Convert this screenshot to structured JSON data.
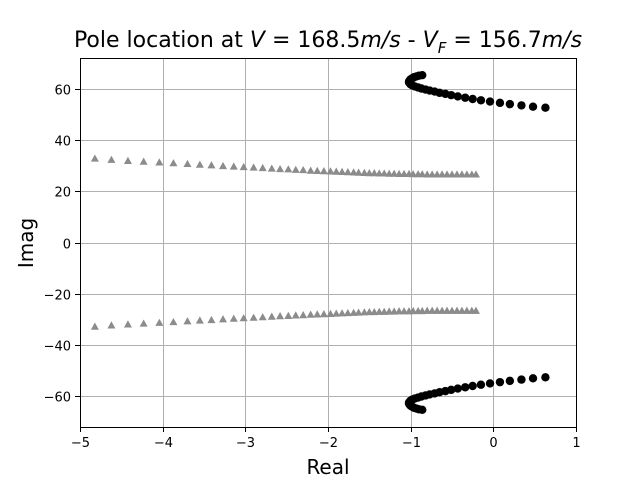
{
  "chart_data": {
    "type": "scatter",
    "title": "Pole location at V = 168.5m/s - V_F = 156.7m/s",
    "title_parts": {
      "prefix": "Pole location at ",
      "v_sym": "V",
      "eq1": " = 168.5",
      "unit1": "m/s",
      "dash": " - ",
      "vf_sym": "V",
      "vf_sub": "F",
      "eq2": " = 156.7",
      "unit2": "m/s"
    },
    "xlabel": "Real",
    "ylabel": "Imag",
    "xlim": [
      -5,
      1
    ],
    "ylim": [
      -72,
      72
    ],
    "x_ticks": [
      -5,
      -4,
      -3,
      -2,
      -1,
      0,
      1
    ],
    "y_ticks": [
      -60,
      -40,
      -20,
      0,
      20,
      40,
      60
    ],
    "x_tick_labels": [
      "−5",
      "−4",
      "−3",
      "−2",
      "−1",
      "0",
      "1"
    ],
    "y_tick_labels": [
      "−60",
      "−40",
      "−20",
      "0",
      "20",
      "40",
      "60"
    ],
    "grid": true,
    "colors": {
      "triangles": "#8c8c8c",
      "circles": "#000000",
      "grid": "#b0b0b0"
    },
    "series": [
      {
        "marker": "triangle",
        "color": "#8c8c8c",
        "points": [
          [
            -4.82,
            32.8
          ],
          [
            -4.62,
            32.3
          ],
          [
            -4.42,
            31.9
          ],
          [
            -4.23,
            31.6
          ],
          [
            -4.04,
            31.3
          ],
          [
            -3.87,
            31.0
          ],
          [
            -3.7,
            30.7
          ],
          [
            -3.55,
            30.4
          ],
          [
            -3.41,
            30.2
          ],
          [
            -3.27,
            29.9
          ],
          [
            -3.14,
            29.7
          ],
          [
            -3.02,
            29.5
          ],
          [
            -2.9,
            29.3
          ],
          [
            -2.79,
            29.1
          ],
          [
            -2.68,
            28.9
          ],
          [
            -2.58,
            28.7
          ],
          [
            -2.48,
            28.6
          ],
          [
            -2.39,
            28.4
          ],
          [
            -2.3,
            28.3
          ],
          [
            -2.21,
            28.1
          ],
          [
            -2.13,
            28.0
          ],
          [
            -2.05,
            27.9
          ],
          [
            -1.97,
            27.8
          ],
          [
            -1.9,
            27.7
          ],
          [
            -1.83,
            27.6
          ],
          [
            -1.76,
            27.5
          ],
          [
            -1.69,
            27.4
          ],
          [
            -1.63,
            27.3
          ],
          [
            -1.56,
            27.2
          ],
          [
            -1.5,
            27.1
          ],
          [
            -1.44,
            27.1
          ],
          [
            -1.38,
            27.0
          ],
          [
            -1.32,
            27.0
          ],
          [
            -1.26,
            26.9
          ],
          [
            -1.2,
            26.9
          ],
          [
            -1.14,
            26.8
          ],
          [
            -1.08,
            26.8
          ],
          [
            -1.02,
            26.8
          ],
          [
            -0.97,
            26.7
          ],
          [
            -0.91,
            26.7
          ],
          [
            -0.86,
            26.7
          ],
          [
            -0.8,
            26.6
          ],
          [
            -0.74,
            26.6
          ],
          [
            -0.68,
            26.6
          ],
          [
            -0.62,
            26.6
          ],
          [
            -0.56,
            26.6
          ],
          [
            -0.5,
            26.6
          ],
          [
            -0.44,
            26.6
          ],
          [
            -0.38,
            26.6
          ],
          [
            -0.32,
            26.6
          ],
          [
            -0.26,
            26.6
          ],
          [
            -0.21,
            26.6
          ],
          [
            -4.82,
            -32.8
          ],
          [
            -4.62,
            -32.3
          ],
          [
            -4.42,
            -31.9
          ],
          [
            -4.23,
            -31.6
          ],
          [
            -4.04,
            -31.3
          ],
          [
            -3.87,
            -31.0
          ],
          [
            -3.7,
            -30.7
          ],
          [
            -3.55,
            -30.4
          ],
          [
            -3.41,
            -30.2
          ],
          [
            -3.27,
            -29.9
          ],
          [
            -3.14,
            -29.7
          ],
          [
            -3.02,
            -29.5
          ],
          [
            -2.9,
            -29.3
          ],
          [
            -2.79,
            -29.1
          ],
          [
            -2.68,
            -28.9
          ],
          [
            -2.58,
            -28.7
          ],
          [
            -2.48,
            -28.6
          ],
          [
            -2.39,
            -28.4
          ],
          [
            -2.3,
            -28.3
          ],
          [
            -2.21,
            -28.1
          ],
          [
            -2.13,
            -28.0
          ],
          [
            -2.05,
            -27.9
          ],
          [
            -1.97,
            -27.8
          ],
          [
            -1.9,
            -27.7
          ],
          [
            -1.83,
            -27.6
          ],
          [
            -1.76,
            -27.5
          ],
          [
            -1.69,
            -27.4
          ],
          [
            -1.63,
            -27.3
          ],
          [
            -1.56,
            -27.2
          ],
          [
            -1.5,
            -27.1
          ],
          [
            -1.44,
            -27.1
          ],
          [
            -1.38,
            -27.0
          ],
          [
            -1.32,
            -27.0
          ],
          [
            -1.26,
            -26.9
          ],
          [
            -1.2,
            -26.9
          ],
          [
            -1.14,
            -26.8
          ],
          [
            -1.08,
            -26.8
          ],
          [
            -1.02,
            -26.8
          ],
          [
            -0.97,
            -26.7
          ],
          [
            -0.91,
            -26.7
          ],
          [
            -0.86,
            -26.7
          ],
          [
            -0.8,
            -26.6
          ],
          [
            -0.74,
            -26.6
          ],
          [
            -0.68,
            -26.6
          ],
          [
            -0.62,
            -26.6
          ],
          [
            -0.56,
            -26.6
          ],
          [
            -0.5,
            -26.6
          ],
          [
            -0.44,
            -26.6
          ],
          [
            -0.38,
            -26.6
          ],
          [
            -0.32,
            -26.6
          ],
          [
            -0.26,
            -26.6
          ],
          [
            -0.21,
            -26.6
          ]
        ]
      },
      {
        "marker": "circle",
        "color": "#000000",
        "points": [
          [
            0.63,
            52.6
          ],
          [
            0.48,
            53.0
          ],
          [
            0.34,
            53.5
          ],
          [
            0.2,
            54.0
          ],
          [
            0.08,
            54.5
          ],
          [
            -0.04,
            55.0
          ],
          [
            -0.15,
            55.5
          ],
          [
            -0.25,
            56.0
          ],
          [
            -0.34,
            56.5
          ],
          [
            -0.43,
            57.0
          ],
          [
            -0.51,
            57.5
          ],
          [
            -0.58,
            58.0
          ],
          [
            -0.65,
            58.4
          ],
          [
            -0.71,
            58.9
          ],
          [
            -0.77,
            59.3
          ],
          [
            -0.82,
            59.7
          ],
          [
            -0.87,
            60.1
          ],
          [
            -0.91,
            60.5
          ],
          [
            -0.95,
            60.9
          ],
          [
            -0.98,
            61.3
          ],
          [
            -1.0,
            61.7
          ],
          [
            -1.01,
            62.1
          ],
          [
            -1.02,
            62.5
          ],
          [
            -1.02,
            62.9
          ],
          [
            -1.01,
            63.3
          ],
          [
            -1.0,
            63.7
          ],
          [
            -0.98,
            64.1
          ],
          [
            -0.96,
            64.5
          ],
          [
            -0.93,
            64.8
          ],
          [
            -0.9,
            65.1
          ],
          [
            -0.86,
            65.3
          ],
          [
            0.63,
            -52.6
          ],
          [
            0.48,
            -53.0
          ],
          [
            0.34,
            -53.5
          ],
          [
            0.2,
            -54.0
          ],
          [
            0.08,
            -54.5
          ],
          [
            -0.04,
            -55.0
          ],
          [
            -0.15,
            -55.5
          ],
          [
            -0.25,
            -56.0
          ],
          [
            -0.34,
            -56.5
          ],
          [
            -0.43,
            -57.0
          ],
          [
            -0.51,
            -57.5
          ],
          [
            -0.58,
            -58.0
          ],
          [
            -0.65,
            -58.4
          ],
          [
            -0.71,
            -58.9
          ],
          [
            -0.77,
            -59.3
          ],
          [
            -0.82,
            -59.7
          ],
          [
            -0.87,
            -60.1
          ],
          [
            -0.91,
            -60.5
          ],
          [
            -0.95,
            -60.9
          ],
          [
            -0.98,
            -61.3
          ],
          [
            -1.0,
            -61.7
          ],
          [
            -1.01,
            -62.1
          ],
          [
            -1.02,
            -62.5
          ],
          [
            -1.02,
            -62.9
          ],
          [
            -1.01,
            -63.3
          ],
          [
            -1.0,
            -63.7
          ],
          [
            -0.98,
            -64.1
          ],
          [
            -0.96,
            -64.5
          ],
          [
            -0.93,
            -64.8
          ],
          [
            -0.9,
            -65.1
          ],
          [
            -0.86,
            -65.3
          ]
        ]
      }
    ]
  }
}
